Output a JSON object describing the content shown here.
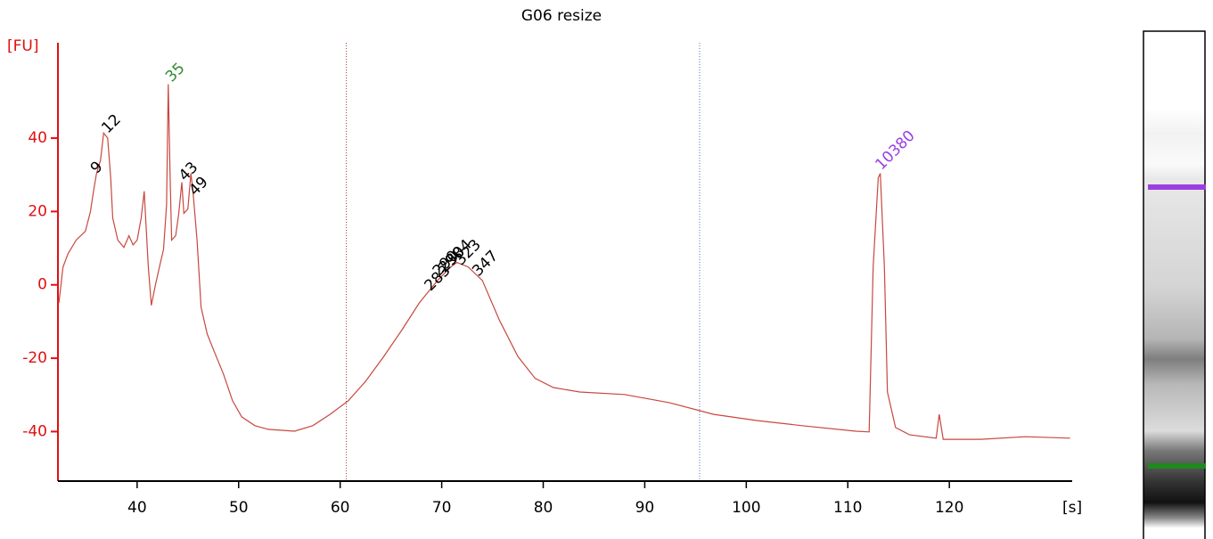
{
  "chart_data": {
    "type": "line",
    "title": "G06 resize",
    "ylabel": "[FU]",
    "xlabel": "[s]",
    "color": "#c8473f",
    "axis_color": "#e01010",
    "xlim": [
      32.2,
      132.1
    ],
    "ylim": [
      -53.5,
      66
    ],
    "xticks": [
      40,
      50,
      60,
      70,
      80,
      90,
      100,
      110,
      120
    ],
    "yticks": [
      -40,
      -20,
      0,
      20,
      40
    ],
    "markers": [
      60.6,
      95.4
    ],
    "x": [
      32.3,
      32.7,
      33.2,
      34.0,
      34.9,
      35.4,
      35.7,
      36.0,
      36.4,
      36.7,
      37.1,
      37.4,
      37.6,
      38.1,
      38.7,
      39.2,
      39.6,
      40.0,
      40.4,
      40.7,
      41.1,
      41.4,
      41.8,
      42.2,
      42.6,
      42.9,
      43.07,
      43.25,
      43.4,
      43.8,
      44.1,
      44.4,
      44.6,
      45.0,
      45.3,
      45.5,
      45.9,
      46.3,
      46.9,
      47.6,
      48.5,
      49.4,
      50.3,
      51.6,
      52.9,
      55.5,
      57.3,
      59.0,
      60.8,
      62.5,
      64.3,
      66.1,
      67.8,
      69.6,
      70.9,
      71.5,
      72.6,
      74.0,
      75.7,
      77.5,
      79.2,
      81.0,
      83.6,
      88.0,
      92.4,
      96.8,
      101.1,
      105.5,
      110.8,
      112.1,
      112.5,
      113.0,
      113.2,
      113.6,
      113.9,
      114.7,
      116.1,
      118.7,
      119.0,
      119.4,
      123.1,
      127.5,
      131.9
    ],
    "values": [
      -4.9,
      4.9,
      8.5,
      12.2,
      14.6,
      20,
      25.5,
      30.4,
      34,
      41.4,
      40,
      29.2,
      18.2,
      12.2,
      10.2,
      13.4,
      10.9,
      12.2,
      18.2,
      25.5,
      4.9,
      -5.6,
      0,
      4.9,
      9.7,
      21.9,
      54.7,
      29.2,
      12.2,
      13.4,
      19.5,
      28,
      19.5,
      20.7,
      30.4,
      25.5,
      12.2,
      -6.1,
      -13.4,
      -18.2,
      -24.3,
      -31.6,
      -36,
      -38.4,
      -39.4,
      -39.9,
      -38.4,
      -35.3,
      -31.6,
      -26.3,
      -19.5,
      -12.2,
      -4.9,
      1.2,
      4.9,
      6.1,
      4.9,
      1.2,
      -9.7,
      -19.5,
      -25.5,
      -28,
      -29.2,
      -29.9,
      -32.1,
      -35.3,
      -37,
      -38.4,
      -39.9,
      -40.1,
      4.9,
      29.2,
      30.4,
      4.9,
      -29.2,
      -38.9,
      -40.9,
      -41.8,
      -35.3,
      -42.1,
      -42.1,
      -41.4,
      -41.8
    ],
    "peaks": [
      {
        "label": "9",
        "x": 35.7,
        "y": 31,
        "color": "#000000"
      },
      {
        "label": "12",
        "x": 36.8,
        "y": 42,
        "color": "#000000"
      },
      {
        "label": "35",
        "x": 43.1,
        "y": 56,
        "color": "#2e8b2e"
      },
      {
        "label": "43",
        "x": 44.4,
        "y": 29,
        "color": "#000000"
      },
      {
        "label": "49",
        "x": 45.4,
        "y": 25,
        "color": "#000000"
      },
      {
        "label": "283",
        "x": 68.6,
        "y": -1,
        "color": "#000000"
      },
      {
        "label": "290",
        "x": 69.4,
        "y": 3,
        "color": "#000000"
      },
      {
        "label": "298",
        "x": 70.0,
        "y": 4,
        "color": "#000000"
      },
      {
        "label": "304",
        "x": 70.7,
        "y": 6,
        "color": "#000000"
      },
      {
        "label": "323",
        "x": 71.6,
        "y": 6,
        "color": "#000000"
      },
      {
        "label": "347",
        "x": 73.3,
        "y": 3,
        "color": "#000000"
      },
      {
        "label": "10380",
        "x": 113.0,
        "y": 32,
        "color": "#9b3fe0"
      }
    ]
  }
}
